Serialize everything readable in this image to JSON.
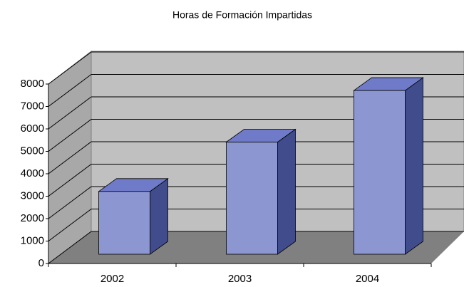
{
  "chart_data": {
    "type": "bar3d",
    "title": "Horas de Formación Impartidas",
    "categories": [
      "2002",
      "2003",
      "2004"
    ],
    "values": [
      2800,
      5000,
      7300
    ],
    "color": "#8c96d0",
    "ylim": [
      0,
      8000
    ],
    "yticks": [
      0,
      1000,
      2000,
      3000,
      4000,
      5000,
      6000,
      7000,
      8000
    ],
    "grid": true
  }
}
